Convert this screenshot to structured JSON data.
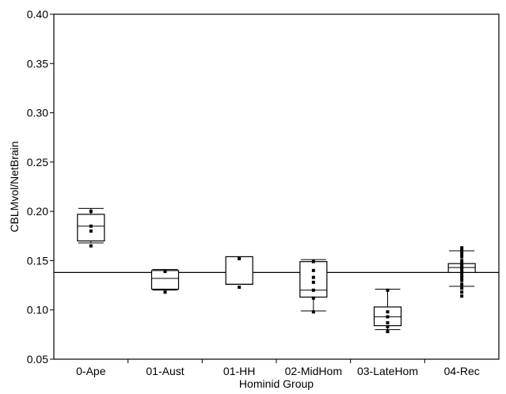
{
  "chart_data": {
    "type": "box",
    "xlabel": "Hominid Group",
    "ylabel": "CBLMvol/NetBrain",
    "ylim": [
      0.05,
      0.4
    ],
    "yticks": [
      "0.05",
      "0.10",
      "0.15",
      "0.20",
      "0.25",
      "0.30",
      "0.35",
      "0.40"
    ],
    "grid": false,
    "reference_line": 0.138,
    "categories": [
      "0-Ape",
      "01-Aust",
      "01-HH",
      "02-MidHom",
      "03-LateHom",
      "04-Rec"
    ],
    "groups": [
      {
        "category": "0-Ape",
        "whisker_low": 0.168,
        "q1": 0.17,
        "median": 0.185,
        "q3": 0.197,
        "whisker_high": 0.203,
        "points": [
          0.165,
          0.18,
          0.185,
          0.2
        ]
      },
      {
        "category": "01-Aust",
        "whisker_low": 0.12,
        "q1": 0.121,
        "median": 0.132,
        "q3": 0.14,
        "whisker_high": 0.141,
        "points": [
          0.118,
          0.139
        ]
      },
      {
        "category": "01-HH",
        "whisker_low": 0.126,
        "q1": 0.126,
        "median": 0.126,
        "q3": 0.154,
        "whisker_high": 0.154,
        "points": [
          0.123,
          0.152
        ]
      },
      {
        "category": "02-MidHom",
        "whisker_low": 0.099,
        "q1": 0.113,
        "median": 0.12,
        "q3": 0.149,
        "whisker_high": 0.151,
        "points": [
          0.098,
          0.112,
          0.12,
          0.128,
          0.133,
          0.14,
          0.149
        ]
      },
      {
        "category": "03-LateHom",
        "whisker_low": 0.08,
        "q1": 0.084,
        "median": 0.093,
        "q3": 0.103,
        "whisker_high": 0.121,
        "points": [
          0.078,
          0.083,
          0.087,
          0.093,
          0.098,
          0.12
        ]
      },
      {
        "category": "04-Rec",
        "whisker_low": 0.124,
        "q1": 0.138,
        "median": 0.143,
        "q3": 0.147,
        "whisker_high": 0.16,
        "points": [
          0.114,
          0.118,
          0.122,
          0.126,
          0.13,
          0.133,
          0.136,
          0.139,
          0.141,
          0.143,
          0.145,
          0.147,
          0.15,
          0.154,
          0.157,
          0.16,
          0.163
        ]
      }
    ]
  }
}
